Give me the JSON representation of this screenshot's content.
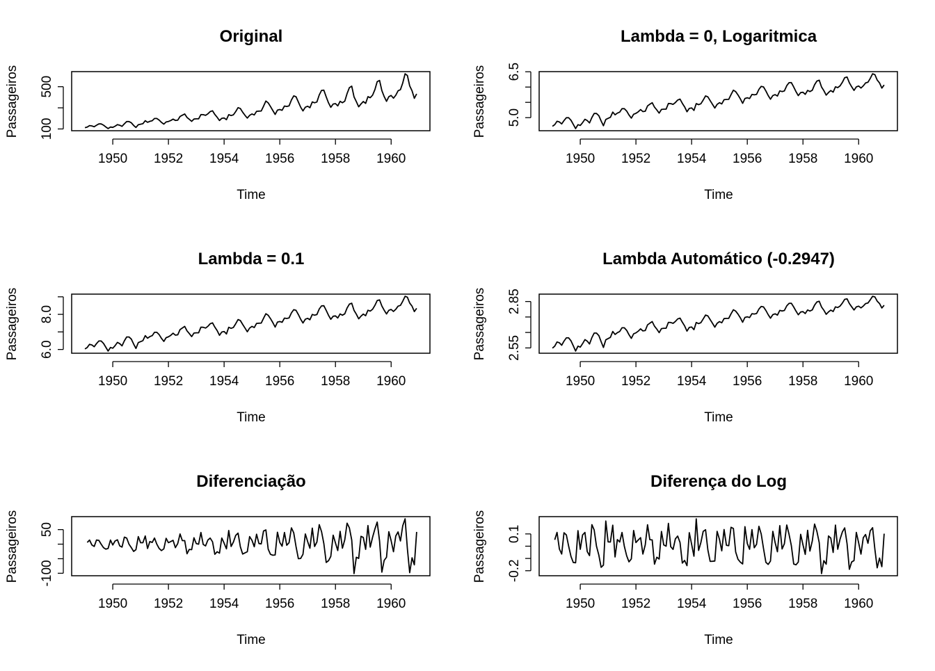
{
  "chart_data": [
    {
      "type": "line",
      "title": "Original",
      "xlabel": "Time",
      "ylabel": "Passageiros",
      "transform": "none",
      "yticks": [
        100,
        300,
        500
      ],
      "ytick_labels": {
        "100": "100",
        "500": "500"
      },
      "xticks": [
        1950,
        1952,
        1954,
        1956,
        1958,
        1960
      ]
    },
    {
      "type": "line",
      "title": "Lambda = 0, Logaritmica",
      "xlabel": "Time",
      "ylabel": "Passageiros",
      "transform": "boxcox",
      "lambda": 0,
      "yticks": [
        5.0,
        5.5,
        6.0,
        6.5
      ],
      "ytick_labels": {
        "5": "5.0",
        "6.5": "6.5"
      },
      "xticks": [
        1950,
        1952,
        1954,
        1956,
        1958,
        1960
      ]
    },
    {
      "type": "line",
      "title": "Lambda = 0.1",
      "xlabel": "Time",
      "ylabel": "Passageiros",
      "transform": "boxcox",
      "lambda": 0.1,
      "yticks": [
        6.0,
        7.0,
        8.0,
        9.0
      ],
      "ytick_labels": {
        "6": "6.0",
        "8": "8.0"
      },
      "xticks": [
        1950,
        1952,
        1954,
        1956,
        1958,
        1960
      ]
    },
    {
      "type": "line",
      "title": "Lambda Automático (-0.2947)",
      "xlabel": "Time",
      "ylabel": "Passageiros",
      "transform": "boxcox",
      "lambda": -0.2947,
      "yticks": [
        2.55,
        2.65,
        2.75,
        2.85
      ],
      "ytick_labels": {
        "2.55": "2.55",
        "2.85": "2.85"
      },
      "xticks": [
        1950,
        1952,
        1954,
        1956,
        1958,
        1960
      ]
    },
    {
      "type": "line",
      "title": "Diferenciação",
      "xlabel": "Time",
      "ylabel": "Passageiros",
      "transform": "diff",
      "yticks": [
        -100,
        -50,
        0,
        50
      ],
      "ytick_labels": {
        "-100": "-100",
        "50": "50"
      },
      "xticks": [
        1950,
        1952,
        1954,
        1956,
        1958,
        1960
      ]
    },
    {
      "type": "line",
      "title": "Diferença do Log",
      "xlabel": "Time",
      "ylabel": "Passageiros",
      "transform": "difflog",
      "yticks": [
        -0.2,
        -0.1,
        0,
        0.1
      ],
      "ytick_labels": {
        "-0.2": "-0.2",
        "0.1": "0.1"
      },
      "xticks": [
        1950,
        1952,
        1954,
        1956,
        1958,
        1960
      ]
    }
  ],
  "series_source": {
    "start": 1949,
    "frequency": 12,
    "values": [
      112,
      118,
      132,
      129,
      121,
      135,
      148,
      148,
      136,
      119,
      104,
      118,
      115,
      126,
      141,
      135,
      125,
      149,
      170,
      170,
      158,
      133,
      114,
      140,
      145,
      150,
      178,
      163,
      172,
      178,
      199,
      199,
      184,
      162,
      146,
      166,
      171,
      180,
      193,
      181,
      183,
      218,
      230,
      242,
      209,
      191,
      172,
      194,
      196,
      196,
      236,
      235,
      229,
      243,
      264,
      272,
      237,
      211,
      180,
      201,
      204,
      188,
      235,
      227,
      234,
      264,
      302,
      293,
      259,
      229,
      203,
      229,
      242,
      233,
      267,
      269,
      270,
      315,
      364,
      347,
      312,
      274,
      237,
      278,
      284,
      277,
      317,
      313,
      318,
      374,
      413,
      405,
      355,
      306,
      271,
      306,
      315,
      301,
      356,
      348,
      355,
      422,
      465,
      467,
      404,
      347,
      305,
      336,
      340,
      318,
      362,
      348,
      363,
      435,
      491,
      505,
      404,
      359,
      310,
      337,
      360,
      342,
      406,
      396,
      420,
      472,
      548,
      559,
      463,
      407,
      362,
      405,
      417,
      391,
      419,
      461,
      472,
      535,
      622,
      606,
      508,
      461,
      390,
      432
    ]
  }
}
